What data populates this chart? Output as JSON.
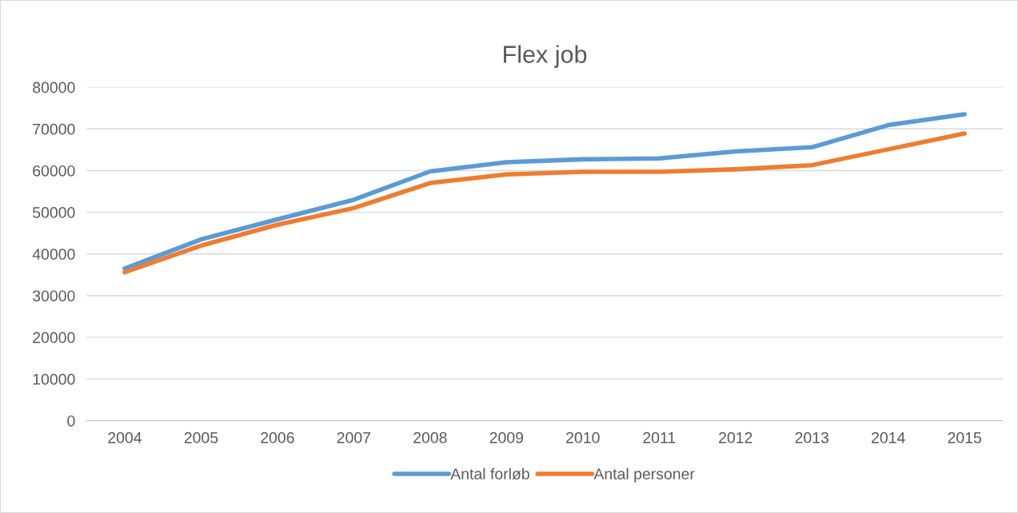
{
  "chart_data": {
    "type": "line",
    "title": "Flex job",
    "categories": [
      "2004",
      "2005",
      "2006",
      "2007",
      "2008",
      "2009",
      "2010",
      "2011",
      "2012",
      "2013",
      "2014",
      "2015"
    ],
    "series": [
      {
        "name": "Antal forløb",
        "color": "#5b9bd5",
        "values": [
          36500,
          43500,
          48300,
          53000,
          59800,
          62000,
          62700,
          62900,
          64600,
          65600,
          70900,
          73500
        ]
      },
      {
        "name": "Antal personer",
        "color": "#ed7d31",
        "values": [
          35600,
          42000,
          47000,
          51000,
          57000,
          59100,
          59700,
          59700,
          60300,
          61300,
          65100,
          68900
        ]
      }
    ],
    "ylim": [
      0,
      80000
    ],
    "yticks": [
      0,
      10000,
      20000,
      30000,
      40000,
      50000,
      60000,
      70000,
      80000
    ],
    "grid": "y",
    "legend": "bottom",
    "marker": "none",
    "line_style": "solid"
  }
}
